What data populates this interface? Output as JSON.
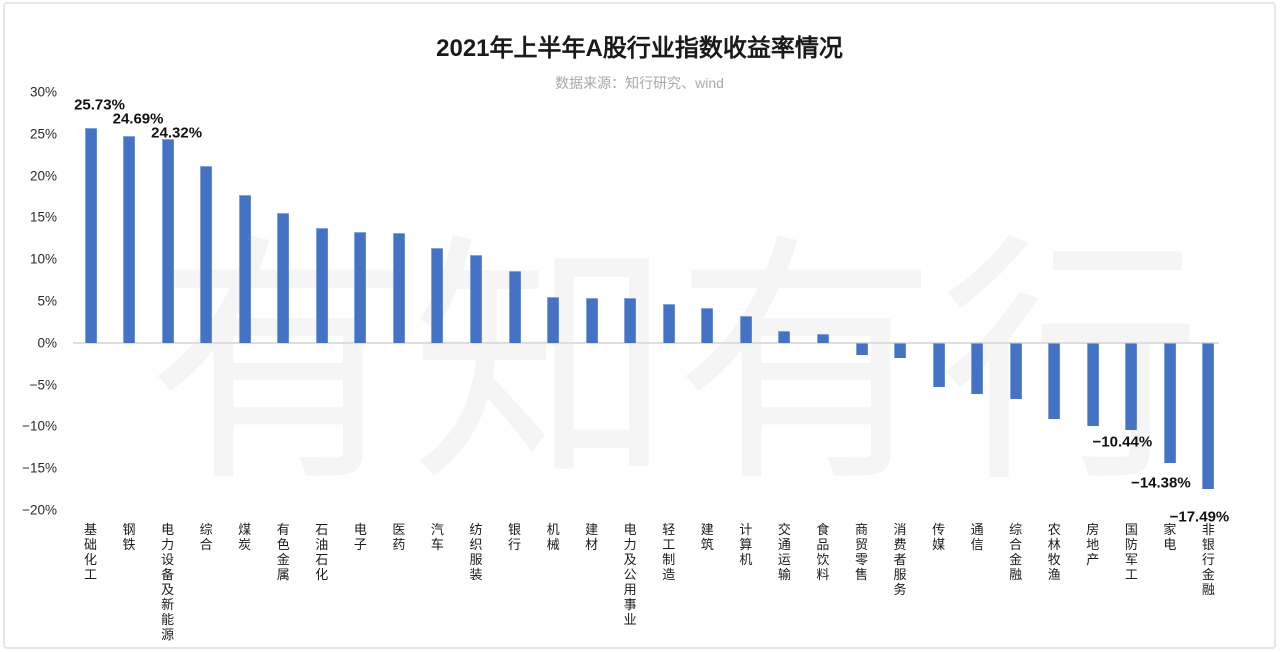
{
  "title": "2021年上半年A股行业指数收益率情况",
  "subtitle": "数据来源：知行研究、wind",
  "watermark": "有知有行",
  "colors": {
    "bar": "#4472c4",
    "title_text": "#1a1a1a",
    "subtitle_text": "#a9a9a9",
    "axis_text": "#2b2b2b",
    "zero_line": "#dedede",
    "data_label_text": "#111111",
    "watermark_text": "#f5f5f5",
    "card_border": "#e7e7e7",
    "background": "#ffffff"
  },
  "chart_data": {
    "type": "bar",
    "title": "2021年上半年A股行业指数收益率情况",
    "subtitle": "数据来源：知行研究、wind",
    "xlabel": "",
    "ylabel": "",
    "grid": false,
    "legend": false,
    "ylim": [
      -20,
      30
    ],
    "y_axis": {
      "min": -20,
      "max": 30,
      "step": 5,
      "unit": "%",
      "tick_labels": [
        "30%",
        "25%",
        "20%",
        "15%",
        "10%",
        "5%",
        "0%",
        "−5%",
        "−10%",
        "−15%",
        "−20%"
      ]
    },
    "categories": [
      "基础化工",
      "钢铁",
      "电力设备及新能源",
      "综合",
      "煤炭",
      "有色金属",
      "石油石化",
      "电子",
      "医药",
      "汽车",
      "纺织服装",
      "银行",
      "机械",
      "建材",
      "电力及公用事业",
      "轻工制造",
      "建筑",
      "计算机",
      "交通运输",
      "食品饮料",
      "商贸零售",
      "消费者服务",
      "传媒",
      "通信",
      "综合金融",
      "农林牧渔",
      "房地产",
      "国防军工",
      "家电",
      "非银行金融"
    ],
    "values": [
      25.73,
      24.69,
      24.32,
      21.2,
      17.7,
      15.5,
      13.7,
      13.3,
      13.1,
      11.3,
      10.5,
      8.6,
      5.5,
      5.4,
      5.3,
      4.7,
      4.2,
      3.2,
      1.4,
      1.1,
      -1.5,
      -1.8,
      -5.3,
      -6.1,
      -6.7,
      -9.1,
      -9.9,
      -10.44,
      -14.38,
      -17.49
    ],
    "labels": [
      "25.73%",
      "24.69%",
      "24.32%",
      null,
      null,
      null,
      null,
      null,
      null,
      null,
      null,
      null,
      null,
      null,
      null,
      null,
      null,
      null,
      null,
      null,
      null,
      null,
      null,
      null,
      null,
      null,
      null,
      "−10.44%",
      "−14.38%",
      "−17.49%"
    ]
  }
}
